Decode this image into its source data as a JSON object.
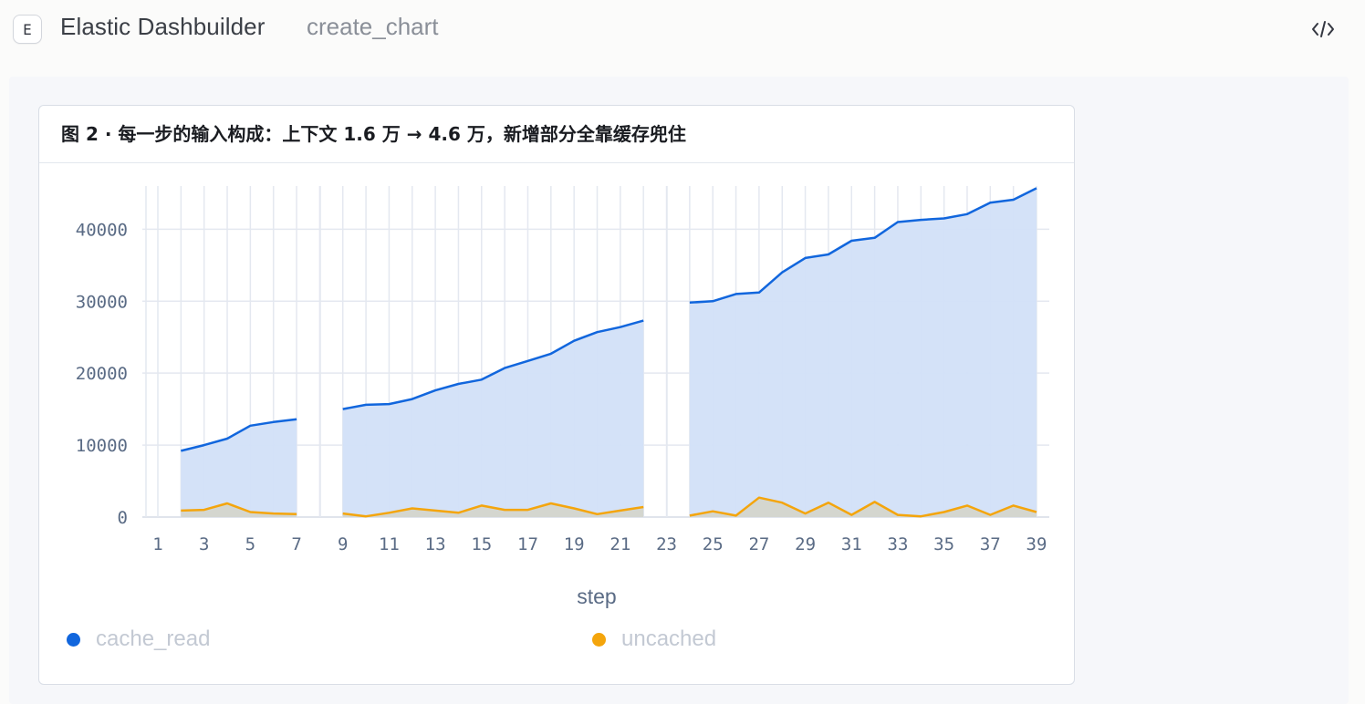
{
  "app": {
    "logo_letter": "E",
    "title": "Elastic Dashbuilder",
    "tool_name": "create_chart"
  },
  "panel": {
    "title": "图 2 · 每一步的输入构成：上下文 1.6 万 → 4.6 万，新增部分全靠缓存兜住"
  },
  "colors": {
    "cache_read": "#1166dd",
    "cache_read_fill": "#d2e0f8",
    "uncached": "#f4a50c",
    "uncached_fill": "#d3d3c8",
    "grid": "#e4e8f0",
    "axis_text": "#5a6b85"
  },
  "chart_data": {
    "type": "area",
    "xlabel": "step",
    "ylabel": "",
    "x": [
      1,
      2,
      3,
      4,
      5,
      6,
      7,
      8,
      9,
      10,
      11,
      12,
      13,
      14,
      15,
      16,
      17,
      18,
      19,
      20,
      21,
      22,
      23,
      24,
      25,
      26,
      27,
      28,
      29,
      30,
      31,
      32,
      33,
      34,
      35,
      36,
      37,
      38,
      39
    ],
    "x_ticks": [
      1,
      3,
      5,
      7,
      9,
      11,
      13,
      15,
      17,
      19,
      21,
      23,
      25,
      27,
      29,
      31,
      33,
      35,
      37,
      39
    ],
    "y_ticks": [
      0,
      10000,
      20000,
      30000,
      40000
    ],
    "ylim": [
      0,
      46000
    ],
    "grid": true,
    "legend_position": "bottom",
    "series": [
      {
        "name": "cache_read",
        "values": [
          null,
          9200,
          10000,
          10900,
          12700,
          13200,
          13600,
          null,
          15000,
          15600,
          15700,
          16400,
          17600,
          18500,
          19100,
          20700,
          21700,
          22700,
          24500,
          25700,
          26400,
          27300,
          null,
          29800,
          30000,
          31000,
          31200,
          34000,
          36000,
          36500,
          38400,
          38800,
          41000,
          41300,
          41500,
          42100,
          43700,
          44100,
          45700
        ]
      },
      {
        "name": "uncached",
        "values": [
          null,
          900,
          1000,
          1900,
          700,
          500,
          400,
          null,
          500,
          100,
          600,
          1200,
          900,
          600,
          1600,
          1000,
          1000,
          1900,
          1200,
          400,
          900,
          1400,
          null,
          200,
          800,
          200,
          2700,
          2000,
          500,
          2000,
          300,
          2100,
          300,
          100,
          700,
          1600,
          300,
          1600,
          700
        ]
      }
    ]
  }
}
